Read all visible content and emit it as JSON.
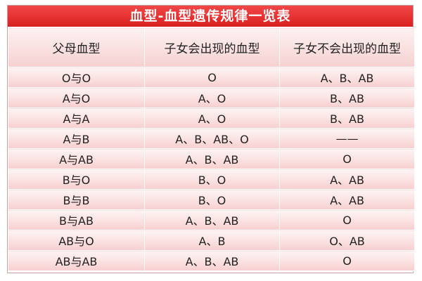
{
  "table": {
    "title": "血型-血型遗传规律一览表",
    "headers": [
      "父母血型",
      "子女会出现的血型",
      "子女不会出现的血型"
    ],
    "rows": [
      [
        "O与O",
        "O",
        "A、B、AB"
      ],
      [
        "A与O",
        "A、O",
        "B、AB"
      ],
      [
        "A与A",
        "A、O",
        "B、AB"
      ],
      [
        "A与B",
        "A、B、AB、O",
        "——"
      ],
      [
        "A与AB",
        "A、B、AB",
        "O"
      ],
      [
        "B与O",
        "B、O",
        "A、AB"
      ],
      [
        "B与B",
        "B、O",
        "A、AB"
      ],
      [
        "B与AB",
        "A、B、AB",
        "O"
      ],
      [
        "AB与O",
        "A、B",
        "O、AB"
      ],
      [
        "AB与AB",
        "A、B、AB",
        "O"
      ]
    ]
  },
  "colors": {
    "title_red": "#e63232",
    "cell_pink": "#fbe4e4",
    "border": "#ffffff"
  }
}
